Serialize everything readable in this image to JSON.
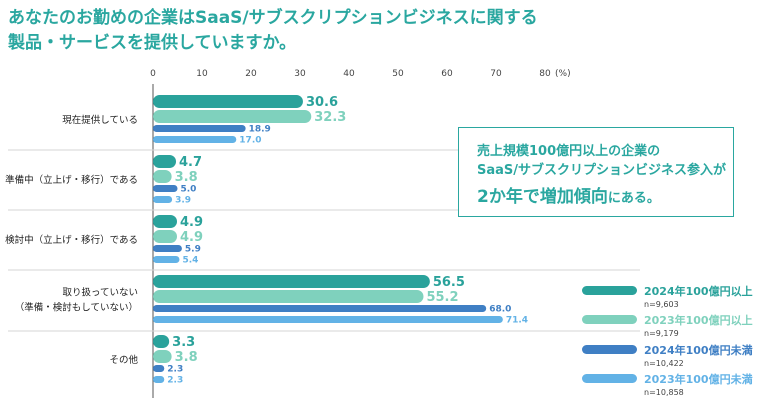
{
  "title_lines": [
    "あなたのお勤めの企業はSaaS/サブスクリプションビジネスに関する",
    "製品・サービスを提供していますか。"
  ],
  "callout": {
    "line1": "売上規模100億円以上の企業の",
    "line2": "SaaS/サブスクリプションビジネス参入が",
    "line3_big": "2か年で増加傾向",
    "line3_small": "にある。"
  },
  "chart_data": {
    "type": "bar",
    "orientation": "horizontal",
    "axis_unit": "(%)",
    "xlim": [
      0,
      80
    ],
    "xticks": [
      0,
      10,
      20,
      30,
      40,
      50,
      60,
      70,
      80
    ],
    "categories": [
      [
        "現在提供している"
      ],
      [
        "準備中（立上げ・移行）である"
      ],
      [
        "検討中（立上げ・移行）である"
      ],
      [
        "取り扱っていない",
        "（準備・検討もしていない）"
      ],
      [
        "その他"
      ]
    ],
    "series": [
      {
        "name": "2024年100億円以上",
        "n": "n=9,603",
        "color": "#2aa29b",
        "values": [
          30.6,
          4.7,
          4.9,
          56.5,
          3.3
        ]
      },
      {
        "name": "2023年100億円以上",
        "n": "n=9,179",
        "color": "#7fd1bd",
        "values": [
          32.3,
          3.8,
          4.9,
          55.2,
          3.8
        ]
      },
      {
        "name": "2024年100億円未満",
        "n": "n=10,422",
        "color": "#3f7fc4",
        "values": [
          18.9,
          5.0,
          5.9,
          68.0,
          2.3
        ]
      },
      {
        "name": "2023年100億円未満",
        "n": "n=10,858",
        "color": "#62b2e6",
        "values": [
          17.0,
          3.9,
          5.4,
          71.4,
          2.3
        ]
      }
    ]
  }
}
